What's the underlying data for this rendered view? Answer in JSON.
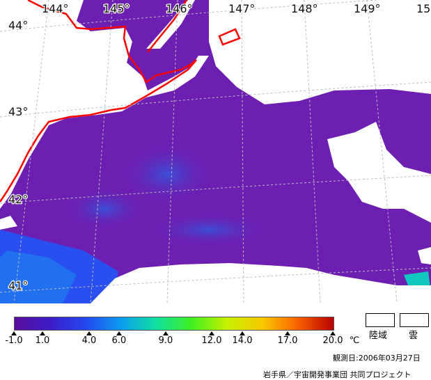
{
  "lon_labels": [
    "144°",
    "145°",
    "146°",
    "147°",
    "148°",
    "149°",
    "15"
  ],
  "lat_labels": [
    "44°",
    "43°",
    "42°",
    "41°"
  ],
  "colorbar": {
    "ticks": [
      "-1.0",
      "1.0",
      "4.0",
      "6.0",
      "9.0",
      "12.0",
      "14.0",
      "17.0",
      "20.0"
    ],
    "unit": "℃",
    "colors": [
      "#5a0e9c",
      "#3c1cc8",
      "#2448f0",
      "#0c9cf0",
      "#10e0a0",
      "#40f020",
      "#c8f000",
      "#f8c800",
      "#f86000",
      "#b80000"
    ]
  },
  "legend": {
    "land_label": "陸域",
    "cloud_label": "雲"
  },
  "footer": {
    "date": "観測日:2006年03月27日",
    "credit": "岩手県／宇宙開発事業団 共同プロジェクト"
  },
  "colors": {
    "sea": "#6a1fb0",
    "coast": "#ff0000",
    "grid": "#bbbbbb"
  }
}
